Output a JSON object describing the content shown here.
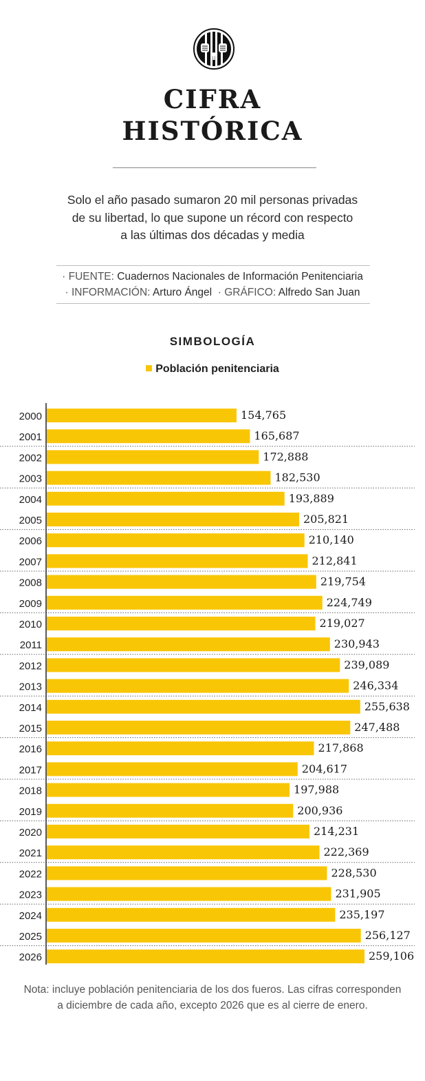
{
  "colors": {
    "bar": "#f9c606",
    "axis": "#222222",
    "divider": "#666666"
  },
  "header": {
    "logo_icon": "prison-bars-hands-icon",
    "title_lines": [
      "CIFRA",
      "HISTÓRICA"
    ],
    "subtitle_lines": [
      "Solo el año pasado sumaron 20 mil personas privadas",
      "de su libertad, lo que supone un récord con respecto",
      "a las últimas dos décadas y media"
    ]
  },
  "credits": {
    "source_label": "FUENTE:",
    "source_value": "Cuadernos Nacionales de Información Penitenciaria",
    "info_label": "INFORMACIÓN:",
    "info_value": "Arturo Ángel",
    "graphic_label": "GRÁFICO:",
    "graphic_value": "Alfredo San Juan"
  },
  "legend": {
    "title": "SIMBOLOGÍA",
    "series_label": "Población penitenciaria"
  },
  "chart_data": {
    "type": "bar",
    "orientation": "horizontal",
    "title": "",
    "xlabel": "",
    "ylabel": "",
    "categories": [
      "2000",
      "2001",
      "2002",
      "2003",
      "2004",
      "2005",
      "2006",
      "2007",
      "2008",
      "2009",
      "2010",
      "2011",
      "2012",
      "2013",
      "2014",
      "2015",
      "2016",
      "2017",
      "2018",
      "2019",
      "2020",
      "2021",
      "2022",
      "2023",
      "2024",
      "2025",
      "2026"
    ],
    "series": [
      {
        "name": "Población penitenciaria",
        "values": [
          154765,
          165687,
          172888,
          182530,
          193889,
          205821,
          210140,
          212841,
          219754,
          224749,
          219027,
          230943,
          239089,
          246334,
          255638,
          247488,
          217868,
          204617,
          197988,
          200936,
          214231,
          222369,
          228530,
          231905,
          235197,
          256127,
          259106
        ],
        "labels": [
          "154,765",
          "165,687",
          "172,888",
          "182,530",
          "193,889",
          "205,821",
          "210,140",
          "212,841",
          "219,754",
          "224,749",
          "219,027",
          "230,943",
          "239,089",
          "246,334",
          "255,638",
          "247,488",
          "217,868",
          "204,617",
          "197,988",
          "200,936",
          "214,231",
          "222,369",
          "228,530",
          "231,905",
          "235,197",
          "256,127",
          "259,106"
        ]
      }
    ],
    "xlim": [
      0,
      259106
    ],
    "grid": false
  },
  "note_lines": [
    "Nota: incluye población penitenciaria de los dos fueros. Las cifras corresponden",
    "a diciembre de cada año, excepto 2026 que es al cierre de enero."
  ]
}
